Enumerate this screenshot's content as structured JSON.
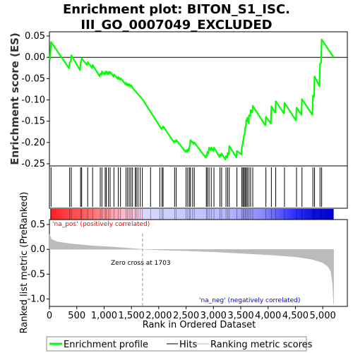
{
  "chart_data": {
    "type": "line",
    "title_lines": [
      "Enrichment plot: BITON_S1_ISC.",
      "III_GO_0007049_EXCLUDED"
    ],
    "xlabel": "Rank in Ordered Dataset",
    "ylabel_top": "Enrichment score (ES)",
    "ylabel_bottom": "Ranked list metric (PreRanked)",
    "xlim": [
      0,
      5450
    ],
    "n_genes": 5200,
    "x_ticks": [
      0,
      500,
      1000,
      1500,
      2000,
      2500,
      3000,
      3500,
      4000,
      4500,
      5000
    ],
    "x_tick_labels": [
      "0",
      "500",
      "1,000",
      "1,500",
      "2,000",
      "2,500",
      "3,000",
      "3,500",
      "4,000",
      "4,500",
      "5,000"
    ],
    "es_panel": {
      "ylim": [
        -0.255,
        0.06
      ],
      "y_ticks": [
        0.05,
        0.0,
        -0.05,
        -0.1,
        -0.15,
        -0.2,
        -0.25
      ],
      "y_tick_labels": [
        "0.05",
        "0.00",
        "-0.05",
        "-0.10",
        "-0.15",
        "-0.20",
        "-0.25"
      ],
      "line_color": "#00ff00",
      "hit_ranks": [
        30,
        370,
        400,
        570,
        590,
        700,
        790,
        930,
        960,
        1020,
        1040,
        1080,
        1110,
        1180,
        1260,
        1300,
        1400,
        1430,
        1460,
        1490,
        1520,
        1570,
        1590,
        1620,
        1660,
        1700,
        1850,
        2020,
        2060,
        2080,
        2290,
        2320,
        2500,
        2530,
        2560,
        2580,
        2620,
        2650,
        2870,
        2890,
        2920,
        2960,
        3010,
        3120,
        3150,
        3230,
        3260,
        3290,
        3430,
        3520,
        3540,
        3560,
        3580,
        3600,
        3620,
        3650,
        3680,
        3720,
        3960,
        4060,
        4140,
        4300,
        4520,
        4620,
        4820,
        4850,
        4950,
        4980
      ],
      "es_curve": [
        [
          0,
          0.0
        ],
        [
          10,
          -0.005
        ],
        [
          30,
          0.036
        ],
        [
          360,
          -0.026
        ],
        [
          370,
          -0.012
        ],
        [
          390,
          -0.01
        ],
        [
          400,
          0.005
        ],
        [
          560,
          -0.03
        ],
        [
          570,
          -0.014
        ],
        [
          590,
          -0.003
        ],
        [
          690,
          -0.018
        ],
        [
          700,
          -0.011
        ],
        [
          780,
          -0.025
        ],
        [
          790,
          -0.018
        ],
        [
          920,
          -0.045
        ],
        [
          930,
          -0.038
        ],
        [
          955,
          -0.041
        ],
        [
          960,
          -0.033
        ],
        [
          1010,
          -0.04
        ],
        [
          1020,
          -0.034
        ],
        [
          1035,
          -0.038
        ],
        [
          1040,
          -0.033
        ],
        [
          1075,
          -0.04
        ],
        [
          1080,
          -0.034
        ],
        [
          1100,
          -0.038
        ],
        [
          1110,
          -0.034
        ],
        [
          1175,
          -0.046
        ],
        [
          1180,
          -0.04
        ],
        [
          1255,
          -0.051
        ],
        [
          1260,
          -0.046
        ],
        [
          1295,
          -0.053
        ],
        [
          1300,
          -0.049
        ],
        [
          1395,
          -0.064
        ],
        [
          1400,
          -0.06
        ],
        [
          1425,
          -0.066
        ],
        [
          1430,
          -0.062
        ],
        [
          1455,
          -0.067
        ],
        [
          1460,
          -0.063
        ],
        [
          1485,
          -0.068
        ],
        [
          1490,
          -0.065
        ],
        [
          1515,
          -0.069
        ],
        [
          1520,
          -0.072
        ],
        [
          1700,
          -0.098
        ],
        [
          1850,
          -0.128
        ],
        [
          2000,
          -0.158
        ],
        [
          2020,
          -0.163
        ],
        [
          2050,
          -0.168
        ],
        [
          2060,
          -0.165
        ],
        [
          2075,
          -0.166
        ],
        [
          2080,
          -0.162
        ],
        [
          2280,
          -0.2
        ],
        [
          2290,
          -0.196
        ],
        [
          2310,
          -0.199
        ],
        [
          2320,
          -0.194
        ],
        [
          2490,
          -0.222
        ],
        [
          2500,
          -0.218
        ],
        [
          2520,
          -0.222
        ],
        [
          2530,
          -0.216
        ],
        [
          2550,
          -0.22
        ],
        [
          2560,
          -0.21
        ],
        [
          2570,
          -0.208
        ],
        [
          2580,
          -0.194
        ],
        [
          2610,
          -0.2
        ],
        [
          2620,
          -0.198
        ],
        [
          2640,
          -0.204
        ],
        [
          2650,
          -0.2
        ],
        [
          2860,
          -0.236
        ],
        [
          2870,
          -0.23
        ],
        [
          2880,
          -0.232
        ],
        [
          2890,
          -0.222
        ],
        [
          2910,
          -0.226
        ],
        [
          2920,
          -0.212
        ],
        [
          2950,
          -0.218
        ],
        [
          2960,
          -0.212
        ],
        [
          3000,
          -0.22
        ],
        [
          3010,
          -0.212
        ],
        [
          3110,
          -0.234
        ],
        [
          3120,
          -0.228
        ],
        [
          3140,
          -0.232
        ],
        [
          3150,
          -0.226
        ],
        [
          3220,
          -0.24
        ],
        [
          3230,
          -0.232
        ],
        [
          3250,
          -0.236
        ],
        [
          3260,
          -0.225
        ],
        [
          3280,
          -0.228
        ],
        [
          3290,
          -0.208
        ],
        [
          3420,
          -0.235
        ],
        [
          3430,
          -0.22
        ],
        [
          3510,
          -0.228
        ],
        [
          3520,
          -0.21
        ],
        [
          3535,
          -0.205
        ],
        [
          3540,
          -0.198
        ],
        [
          3555,
          -0.19
        ],
        [
          3560,
          -0.182
        ],
        [
          3575,
          -0.178
        ],
        [
          3580,
          -0.166
        ],
        [
          3595,
          -0.16
        ],
        [
          3600,
          -0.147
        ],
        [
          3615,
          -0.15
        ],
        [
          3620,
          -0.142
        ],
        [
          3645,
          -0.155
        ],
        [
          3650,
          -0.136
        ],
        [
          3675,
          -0.138
        ],
        [
          3680,
          -0.124
        ],
        [
          3710,
          -0.13
        ],
        [
          3720,
          -0.114
        ],
        [
          3950,
          -0.16
        ],
        [
          3960,
          -0.14
        ],
        [
          4050,
          -0.155
        ],
        [
          4060,
          -0.115
        ],
        [
          4130,
          -0.13
        ],
        [
          4140,
          -0.103
        ],
        [
          4290,
          -0.132
        ],
        [
          4300,
          -0.107
        ],
        [
          4510,
          -0.148
        ],
        [
          4520,
          -0.118
        ],
        [
          4610,
          -0.135
        ],
        [
          4620,
          -0.098
        ],
        [
          4810,
          -0.135
        ],
        [
          4820,
          -0.09
        ],
        [
          4840,
          -0.093
        ],
        [
          4850,
          -0.045
        ],
        [
          4940,
          -0.068
        ],
        [
          4950,
          -0.015
        ],
        [
          4970,
          -0.013
        ],
        [
          4980,
          0.042
        ],
        [
          5200,
          0.0
        ]
      ]
    },
    "metric_panel": {
      "ylim": [
        -1.15,
        0.6
      ],
      "y_ticks": [
        0.5,
        0.0,
        -0.5,
        -1.0
      ],
      "y_tick_labels": [
        "0.5",
        "0.0",
        "-0.5",
        "-1.0"
      ],
      "fill_color": "#bbbbbb",
      "metric_curve": [
        [
          0,
          0.3
        ],
        [
          40,
          0.2
        ],
        [
          150,
          0.15
        ],
        [
          400,
          0.11
        ],
        [
          800,
          0.07
        ],
        [
          1200,
          0.045
        ],
        [
          1703,
          0.0
        ],
        [
          2500,
          -0.03
        ],
        [
          3000,
          -0.05
        ],
        [
          3500,
          -0.08
        ],
        [
          4000,
          -0.11
        ],
        [
          4500,
          -0.15
        ],
        [
          4800,
          -0.2
        ],
        [
          5000,
          -0.27
        ],
        [
          5100,
          -0.35
        ],
        [
          5150,
          -0.45
        ],
        [
          5180,
          -0.7
        ],
        [
          5200,
          -1.1
        ]
      ],
      "pos_label": "'na_pos' (positively correlated)",
      "neg_label": "'na_neg' (negatively correlated)",
      "zero_cross_rank": 1703,
      "zero_cross_label": "Zero cross at 1703",
      "pos_label_color": "#ff0000",
      "neg_label_color": "#0000ff"
    },
    "legend": [
      {
        "label": "Enrichment profile",
        "color": "#00ff00"
      },
      {
        "label": "Hits",
        "color": "#000000"
      },
      {
        "label": "Ranking metric scores",
        "color": "#bbbbbb"
      }
    ]
  }
}
